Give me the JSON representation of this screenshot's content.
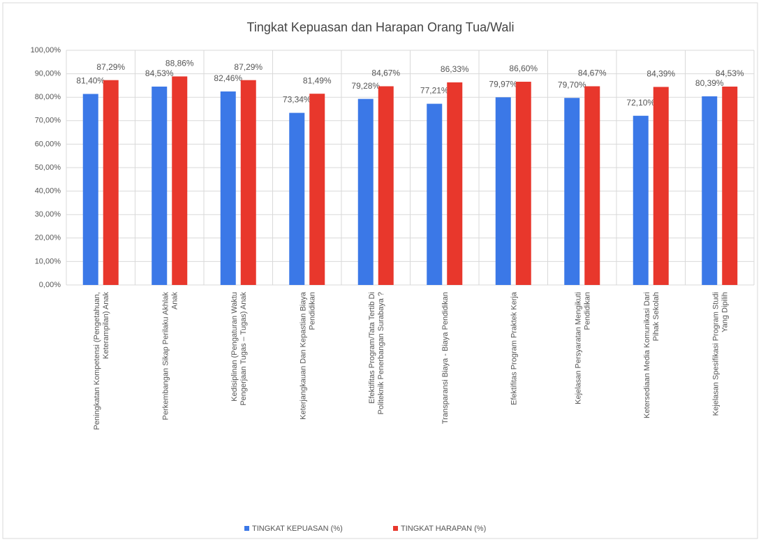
{
  "chart_data": {
    "type": "bar",
    "title": "Tingkat Kepuasan dan Harapan Orang Tua/Wali",
    "categories": [
      "Peningkatan Kompetensi (Pengetahuan, Keterampilan) Anak",
      "Perkembangan Sikap Perilaku Akhlak Anak",
      "Kedisiplinan (Pengaturan Waktu Pengerjaan Tugas – Tugas) Anak",
      "Keterjangkauan Dan Kepastian Biaya Pendidikan",
      "Efektifitas Program/Tata Tertib Di Politeknik Penerbangan Surabaya ?",
      "Transparansi Biaya - Biaya Pendidikan",
      "Efektifitas Program Praktek Kerja",
      "Kejelasan Persyaratan Mengikuti Pendidikan",
      "Ketersediaan Media Komunikasi Dari Pihak Sekolah",
      "Kejelasan Spesifikasi Program Studi Yang Dipilih"
    ],
    "series": [
      {
        "name": "TINGKAT KEPUASAN (%)",
        "color": "#3b78e7",
        "values": [
          81.4,
          84.53,
          82.46,
          73.34,
          79.28,
          77.21,
          79.97,
          79.7,
          72.1,
          80.39
        ],
        "value_labels": [
          "81,40%",
          "84,53%",
          "82,46%",
          "73,34%",
          "79,28%",
          "77,21%",
          "79,97%",
          "79,70%",
          "72,10%",
          "80,39%"
        ]
      },
      {
        "name": "TINGKAT HARAPAN (%)",
        "color": "#e8372c",
        "values": [
          87.29,
          88.86,
          87.29,
          81.49,
          84.67,
          86.33,
          86.6,
          84.67,
          84.39,
          84.53
        ],
        "value_labels": [
          "87,29%",
          "88,86%",
          "87,29%",
          "81,49%",
          "84,67%",
          "86,33%",
          "86,60%",
          "84,67%",
          "84,39%",
          "84,53%"
        ]
      }
    ],
    "ylim": [
      0,
      100
    ],
    "yticks": [
      {
        "value": 0,
        "label": "0,00%"
      },
      {
        "value": 10,
        "label": "10,00%"
      },
      {
        "value": 20,
        "label": "20,00%"
      },
      {
        "value": 30,
        "label": "30,00%"
      },
      {
        "value": 40,
        "label": "40,00%"
      },
      {
        "value": 50,
        "label": "50,00%"
      },
      {
        "value": 60,
        "label": "60,00%"
      },
      {
        "value": 70,
        "label": "70,00%"
      },
      {
        "value": 80,
        "label": "80,00%"
      },
      {
        "value": 90,
        "label": "90,00%"
      },
      {
        "value": 100,
        "label": "100,00%"
      }
    ],
    "grid": true,
    "legend": "bottom"
  }
}
